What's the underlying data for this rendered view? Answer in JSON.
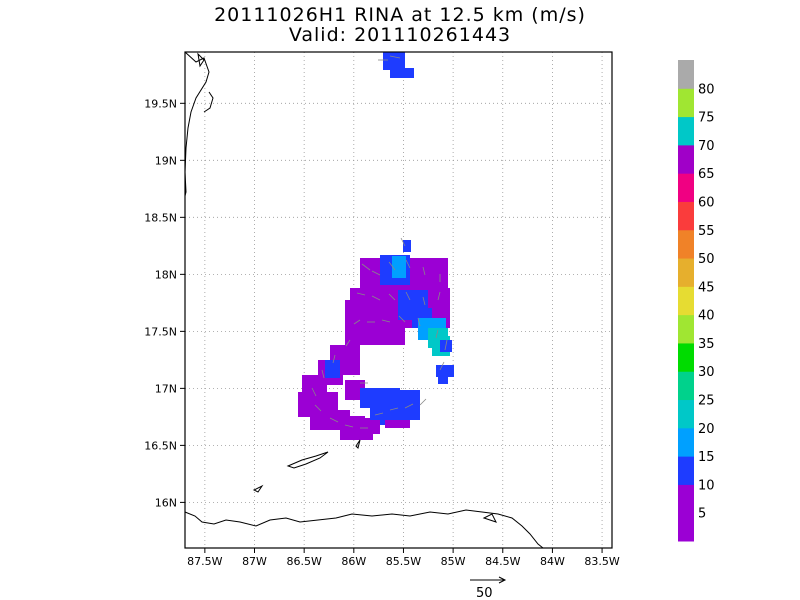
{
  "title": {
    "line1": "20111026H1 RINA at 12.5 km (m/s)",
    "line2": "Valid: 201110261443"
  },
  "map": {
    "lon_ticks": [
      "87.5W",
      "87W",
      "86.5W",
      "86W",
      "85.5W",
      "85W",
      "84.5W",
      "84W",
      "83.5W"
    ],
    "lon_values": [
      -87.5,
      -87.0,
      -86.5,
      -86.0,
      -85.5,
      -85.0,
      -84.5,
      -84.0,
      -83.5
    ],
    "lat_ticks": [
      "16N",
      "16.5N",
      "17N",
      "17.5N",
      "18N",
      "18.5N",
      "19N",
      "19.5N"
    ],
    "lat_values": [
      16.0,
      16.5,
      17.0,
      17.5,
      18.0,
      18.5,
      19.0,
      19.5
    ],
    "lon_range": [
      -87.7,
      -83.4
    ],
    "lat_range": [
      15.6,
      19.95
    ],
    "grid": "dotted"
  },
  "colorbar": {
    "labels": [
      "5",
      "10",
      "15",
      "20",
      "25",
      "30",
      "35",
      "40",
      "45",
      "50",
      "55",
      "60",
      "65",
      "70",
      "75",
      "80"
    ],
    "colors": [
      "#9b00d4",
      "#9b00d4",
      "#1e3cff",
      "#00a0ff",
      "#00c8c8",
      "#00d28c",
      "#00dc00",
      "#a0e632",
      "#e6dc32",
      "#e6af2d",
      "#f08228",
      "#fa3c3c",
      "#f00082",
      "#a000c8",
      "#00c8c8",
      "#a0e632",
      "#aaaaaa"
    ]
  },
  "reference_vector": {
    "label": "50"
  },
  "wind_field": {
    "units": "m/s",
    "level": "12.5 km",
    "storm": "RINA"
  }
}
